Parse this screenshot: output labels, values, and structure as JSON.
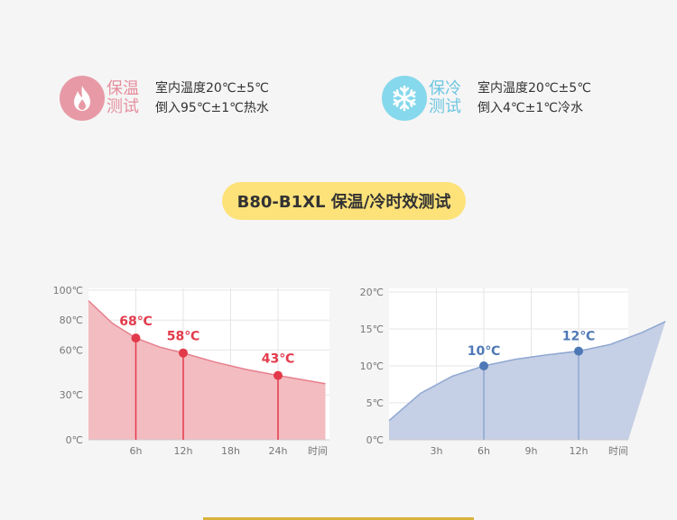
{
  "legend": {
    "warm": {
      "icon": "flame-icon",
      "tag_line1": "保温",
      "tag_line2": "测试",
      "desc_line1": "室内温度20℃±5℃",
      "desc_line2": "倒入95℃±1℃热水",
      "color": "#e79aa6"
    },
    "cold": {
      "icon": "snowflake-icon",
      "tag_line1": "保冷",
      "tag_line2": "测试",
      "desc_line1": "室内温度20℃±5℃",
      "desc_line2": "倒入4℃±1℃冷水",
      "color": "#86d8ec"
    }
  },
  "title": "B80-B1XL 保温/冷时效测试",
  "chart_data": [
    {
      "type": "area",
      "xlabel": "时间",
      "x_ticks": [
        "6h",
        "12h",
        "18h",
        "24h"
      ],
      "y_ticks": [
        "100℃",
        "80℃",
        "60℃",
        "30℃",
        "0℃"
      ],
      "fill_color": "#f3bcc1",
      "line_color": "#e67f8c",
      "label_color": "#e23a4a",
      "points": [
        {
          "x": 6,
          "y": 68,
          "label": "68℃"
        },
        {
          "x": 12,
          "y": 58,
          "label": "58℃"
        },
        {
          "x": 24,
          "y": 43,
          "label": "43℃"
        }
      ]
    },
    {
      "type": "area",
      "xlabel": "时间",
      "x_ticks": [
        "3h",
        "6h",
        "9h",
        "12h"
      ],
      "y_ticks": [
        "20℃",
        "15℃",
        "10℃",
        "5℃",
        "0℃"
      ],
      "fill_color": "#c5cfe5",
      "line_color": "#8fa7d2",
      "label_color": "#4e78b5",
      "points": [
        {
          "x": 6,
          "y": 10,
          "label": "10℃"
        },
        {
          "x": 12,
          "y": 12,
          "label": "12℃"
        }
      ]
    }
  ]
}
